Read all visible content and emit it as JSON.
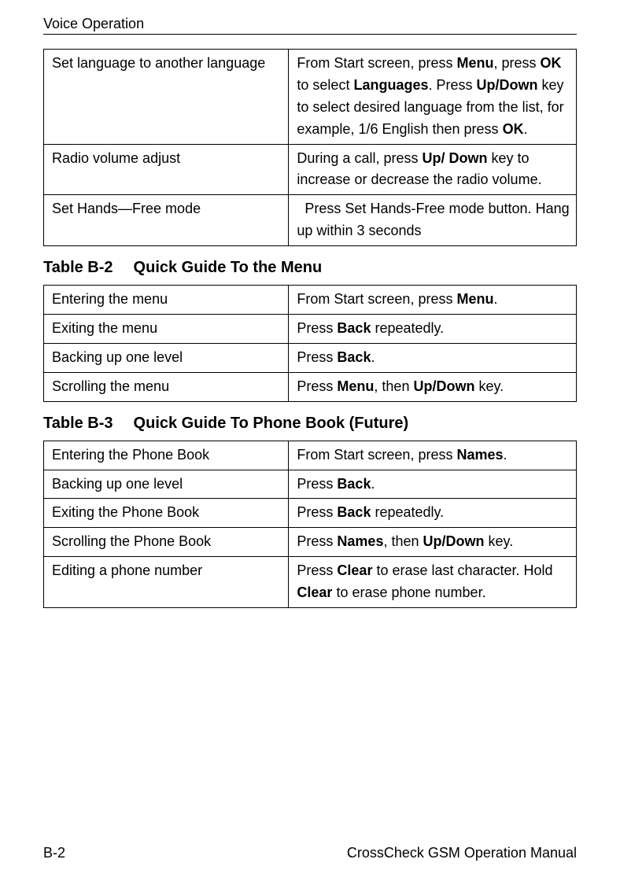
{
  "page": {
    "header": "Voice Operation",
    "footer_left": "B-2",
    "footer_right": "CrossCheck GSM Operation Manual"
  },
  "table1": {
    "rows": [
      {
        "left": "Set language to another language",
        "right_parts": [
          {
            "t": "From Start screen, press "
          },
          {
            "t": "Menu",
            "b": true
          },
          {
            "t": ", press "
          },
          {
            "t": "OK",
            "b": true
          },
          {
            "t": " to select "
          },
          {
            "t": "Languages",
            "b": true
          },
          {
            "t": ". Press "
          },
          {
            "t": "Up/Down",
            "b": true
          },
          {
            "t": " key to select desired language from the list, for example, 1/6 English then press "
          },
          {
            "t": "OK",
            "b": true
          },
          {
            "t": "."
          }
        ]
      },
      {
        "left": "Radio volume adjust",
        "right_parts": [
          {
            "t": "During a call, press "
          },
          {
            "t": "Up/ Down",
            "b": true
          },
          {
            "t": " key to increase or decrease the radio volume."
          }
        ]
      },
      {
        "left": "Set Hands—Free mode",
        "right_parts": [
          {
            "t": "  Press Set Hands-Free mode"
          },
          {
            "t": " button. Hang up within 3 seconds"
          }
        ]
      }
    ]
  },
  "caption2": {
    "label": "Table B-2",
    "title": "Quick Guide To the Menu"
  },
  "table2": {
    "rows": [
      {
        "left": "Entering the menu",
        "right_parts": [
          {
            "t": "From Start screen, press "
          },
          {
            "t": "Menu",
            "b": true
          },
          {
            "t": "."
          }
        ]
      },
      {
        "left": "Exiting the menu",
        "right_parts": [
          {
            "t": "Press "
          },
          {
            "t": "Back",
            "b": true
          },
          {
            "t": " repeatedly."
          }
        ]
      },
      {
        "left": "Backing up one level",
        "right_parts": [
          {
            "t": "Press "
          },
          {
            "t": "Back",
            "b": true
          },
          {
            "t": "."
          }
        ]
      },
      {
        "left": "Scrolling the menu",
        "right_parts": [
          {
            "t": "Press "
          },
          {
            "t": "Menu",
            "b": true
          },
          {
            "t": ", then "
          },
          {
            "t": "Up/Down",
            "b": true
          },
          {
            "t": " key."
          }
        ]
      }
    ]
  },
  "caption3": {
    "label": "Table B-3",
    "title": "Quick Guide To Phone Book (Future)"
  },
  "table3": {
    "rows": [
      {
        "left": "Entering the Phone Book",
        "right_parts": [
          {
            "t": "From Start screen, press "
          },
          {
            "t": "Names",
            "b": true
          },
          {
            "t": "."
          }
        ]
      },
      {
        "left": "Backing up one level",
        "right_parts": [
          {
            "t": "Press "
          },
          {
            "t": "Back",
            "b": true
          },
          {
            "t": "."
          }
        ]
      },
      {
        "left": "Exiting the Phone Book",
        "right_parts": [
          {
            "t": "Press "
          },
          {
            "t": "Back",
            "b": true
          },
          {
            "t": " repeatedly."
          }
        ]
      },
      {
        "left": "Scrolling the Phone Book",
        "right_parts": [
          {
            "t": "Press "
          },
          {
            "t": "Names",
            "b": true
          },
          {
            "t": ", then "
          },
          {
            "t": "Up/Down",
            "b": true
          },
          {
            "t": " key."
          }
        ]
      },
      {
        "left": "Editing a phone number",
        "right_parts": [
          {
            "t": "Press "
          },
          {
            "t": "Clear",
            "b": true
          },
          {
            "t": " to erase last character. Hold "
          },
          {
            "t": "Clear",
            "b": true
          },
          {
            "t": " to erase phone number."
          }
        ]
      }
    ]
  }
}
